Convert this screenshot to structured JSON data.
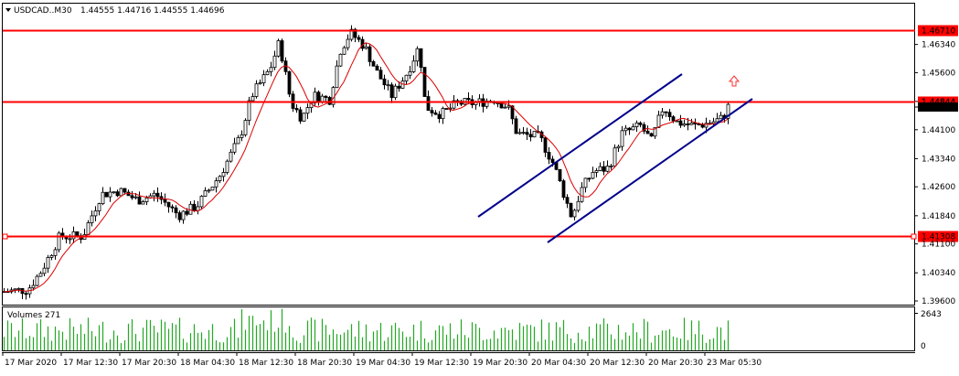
{
  "header": {
    "symbol_label": "USDCAD..M30",
    "ohlc_text": "1.44555 1.44716 1.44555 1.44696"
  },
  "volume_panel": {
    "label": "Volumes 271",
    "max_tick": "2643",
    "zero_tick": "0",
    "color": "#22aa22"
  },
  "chart_data": {
    "type": "candlestick",
    "symbol": "USDCAD",
    "timeframe": "M30",
    "ylim": [
      1.396,
      1.471
    ],
    "y_ticks": [
      "1.46340",
      "1.45600",
      "1.44844",
      "1.44696",
      "1.44100",
      "1.43340",
      "1.42600",
      "1.41840",
      "1.41100",
      "1.40340",
      "1.39600"
    ],
    "x_ticks": [
      "17 Mar 2020",
      "17 Mar 12:30",
      "17 Mar 20:30",
      "18 Mar 04:30",
      "18 Mar 12:30",
      "18 Mar 20:30",
      "19 Mar 04:30",
      "19 Mar 12:30",
      "19 Mar 20:30",
      "20 Mar 04:30",
      "20 Mar 12:30",
      "20 Mar 20:30",
      "23 Mar 05:30"
    ],
    "levels": [
      {
        "value": 1.4671,
        "label": "1.46710",
        "color": "#ff0000"
      },
      {
        "value": 1.44844,
        "label": "1.44844",
        "color": "#ff0000"
      },
      {
        "value": 1.41308,
        "label": "1.41308",
        "color": "#ff0000"
      }
    ],
    "current_price": {
      "value": 1.44696,
      "label": "1.44696"
    },
    "channel_color": "#00008b",
    "ma_color": "#dd0000",
    "candle_color": "#000000"
  }
}
